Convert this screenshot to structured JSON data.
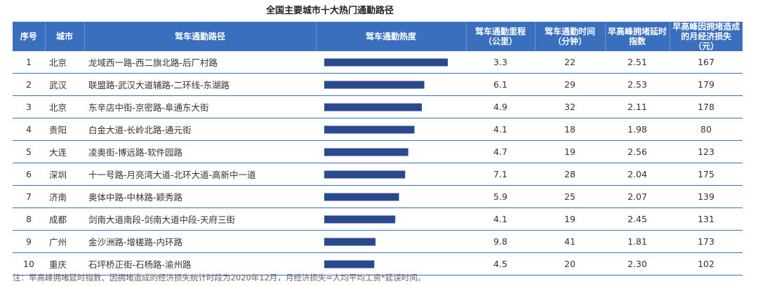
{
  "title": "全国主要城市十大热门通勤路径",
  "note": "注：早高峰拥堵延时指数、因拥堵造成的经济损失统计时段为2020年12月，月经济损失=人均平均工资*延误时间。",
  "colors": {
    "header_bg": "#3a6fbd",
    "bar": "#2b4a8e",
    "row_line": "#3a6fbd"
  },
  "chart_data": {
    "type": "table",
    "columns": [
      {
        "key": "rank",
        "label": "序号"
      },
      {
        "key": "city",
        "label": "城市"
      },
      {
        "key": "route",
        "label": "驾车通勤路径"
      },
      {
        "key": "heat",
        "label": "驾车通勤热度"
      },
      {
        "key": "distance",
        "label": "驾车通勤里程（公里）"
      },
      {
        "key": "time",
        "label": "驾车通勤时间（分钟）"
      },
      {
        "key": "congestion",
        "label": "早高峰拥堵延时指数"
      },
      {
        "key": "loss",
        "label": "早高峰因拥堵造成的月经济损失（元）"
      }
    ],
    "heat_max": 1.0,
    "rows": [
      {
        "rank": "1",
        "city": "北京",
        "route": "龙域西一路-西二旗北路-后厂村路",
        "heat": 1.0,
        "distance": "3.3",
        "time": "22",
        "congestion": "2.51",
        "loss": "167"
      },
      {
        "rank": "2",
        "city": "武汉",
        "route": "联盟路-武汉大道辅路-二环线-东湖路",
        "heat": 0.81,
        "distance": "6.1",
        "time": "29",
        "congestion": "2.53",
        "loss": "179"
      },
      {
        "rank": "3",
        "city": "北京",
        "route": "东辛店中街-京密路-阜通东大街",
        "heat": 0.79,
        "distance": "4.9",
        "time": "32",
        "congestion": "2.11",
        "loss": "178"
      },
      {
        "rank": "4",
        "city": "贵阳",
        "route": "白金大道-长岭北路-通元街",
        "heat": 0.73,
        "distance": "4.1",
        "time": "18",
        "congestion": "1.98",
        "loss": "80"
      },
      {
        "rank": "5",
        "city": "大连",
        "route": "凌奥街-博远路-软件园路",
        "heat": 0.68,
        "distance": "4.7",
        "time": "19",
        "congestion": "2.56",
        "loss": "123"
      },
      {
        "rank": "6",
        "city": "深圳",
        "route": "十一号路-月亮湾大道-北环大道-高新中一道",
        "heat": 0.655,
        "distance": "7.1",
        "time": "28",
        "congestion": "2.04",
        "loss": "175"
      },
      {
        "rank": "7",
        "city": "济南",
        "route": "奥体中路-中林路-颖秀路",
        "heat": 0.605,
        "distance": "5.9",
        "time": "25",
        "congestion": "2.07",
        "loss": "139"
      },
      {
        "rank": "8",
        "city": "成都",
        "route": "剑南大道南段-剑南大道中段-天府三街",
        "heat": 0.575,
        "distance": "4.1",
        "time": "19",
        "congestion": "2.45",
        "loss": "131"
      },
      {
        "rank": "9",
        "city": "广州",
        "route": "金沙洲路-增槎路-内环路",
        "heat": 0.415,
        "distance": "9.8",
        "time": "41",
        "congestion": "1.81",
        "loss": "173"
      },
      {
        "rank": "10",
        "city": "重庆",
        "route": "石坪桥正街-石杨路-渝州路",
        "heat": 0.405,
        "distance": "4.5",
        "time": "20",
        "congestion": "2.30",
        "loss": "102"
      }
    ]
  }
}
